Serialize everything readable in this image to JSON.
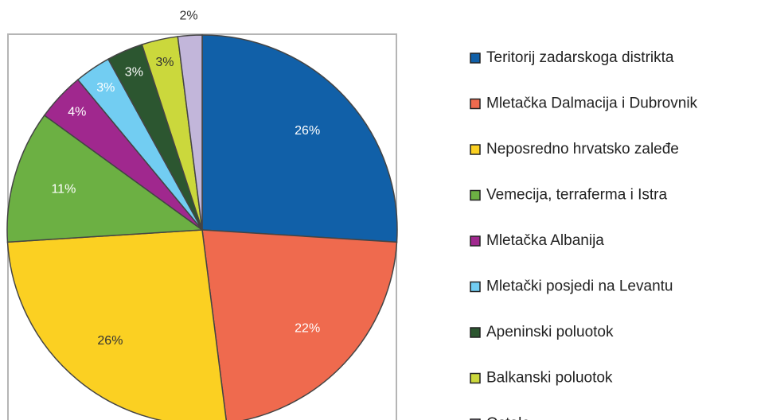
{
  "chart_data": {
    "type": "pie",
    "categories": [
      "Teritorij zadarskoga distrikta",
      "Mletačka Dalmacija i Dubrovnik",
      "Neposredno hrvatsko zaleđe",
      "Vemecija, terraferma i Istra",
      "Mletačka Albanija",
      "Mletački posjedi na Levantu",
      "Apeninski poluotok",
      "Balkanski poluotok",
      "Ostalo"
    ],
    "values": [
      26,
      22,
      26,
      11,
      4,
      3,
      3,
      3,
      2
    ],
    "value_labels": [
      "26%",
      "22%",
      "26%",
      "11%",
      "4%",
      "3%",
      "3%",
      "3%",
      "2%"
    ],
    "colors": [
      "#1160a8",
      "#ef6a4e",
      "#fbd022",
      "#6cb043",
      "#a0288e",
      "#72cdf2",
      "#2c5630",
      "#cbd83c",
      "#c2b6da"
    ],
    "legend": "right"
  }
}
